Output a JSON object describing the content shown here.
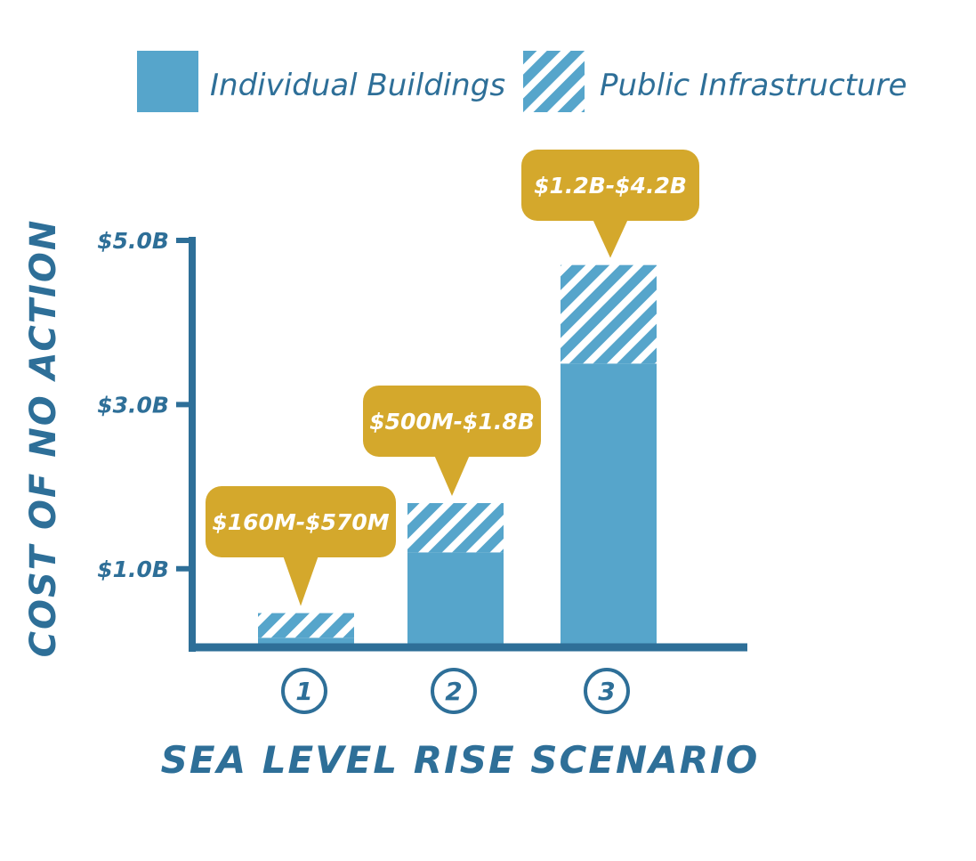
{
  "colors": {
    "bar": "#56a5cb",
    "axis": "#2e6f98",
    "callout": "#d4a82c",
    "callout_text": "#ffffff",
    "hatch_bg": "#ffffff"
  },
  "chart_data": {
    "type": "bar",
    "stacked": true,
    "categories": [
      "1",
      "2",
      "3"
    ],
    "series": [
      {
        "name": "Individual Buildings",
        "pattern": "solid",
        "values": [
          0.16,
          1.2,
          3.5
        ]
      },
      {
        "name": "Public Infrastructure",
        "pattern": "hatched",
        "values": [
          0.3,
          0.6,
          1.2
        ]
      }
    ],
    "range_labels": [
      "$160M-$570M",
      "$500M-$1.8B",
      "$1.2B-$4.2B"
    ],
    "yticks": [
      {
        "value": 1.0,
        "label": "$1.0B"
      },
      {
        "value": 3.0,
        "label": "$3.0B"
      },
      {
        "value": 5.0,
        "label": "$5.0B"
      }
    ],
    "ylim": [
      0,
      5.0
    ],
    "xlabel": "SEA LEVEL RISE SCENARIO",
    "ylabel": "COST OF NO ACTION",
    "legend_position": "top",
    "grid": false
  }
}
